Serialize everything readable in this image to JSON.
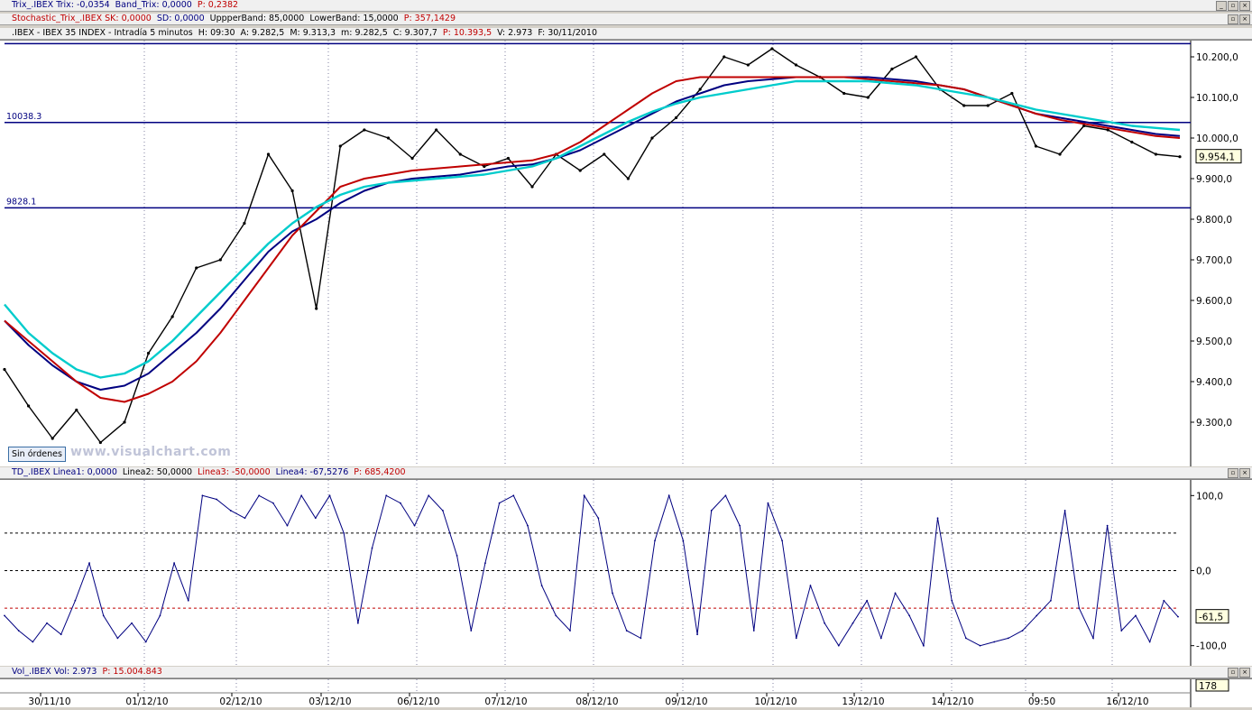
{
  "headers": {
    "trix": [
      "Trix_.IBEX Trix: -0,0354",
      "Band_Trix: 0,0000",
      "P: 0,2382"
    ],
    "stoch": [
      "Stochastic_Trix_.IBEX SK: 0,0000",
      "SD: 0,0000",
      "UppperBand: 85,0000",
      "LowerBand: 15,0000",
      "P: 357,1429"
    ],
    "ibex": [
      ".IBEX - IBEX 35 INDEX - Intradía 5 minutos",
      "H: 09:30",
      "A: 9.282,5",
      "M: 9.313,3",
      "m: 9.282,5",
      "C: 9.307,7",
      "P: 10.393,5",
      "V: 2.973",
      "F: 30/11/2010"
    ],
    "td": [
      "TD_.IBEX Linea1: 0,0000",
      "Linea2: 50,0000",
      "Linea3: -50,0000",
      "Linea4: -67,5276",
      "P: 685,4200"
    ],
    "vol": [
      "Vol_.IBEX Vol: 2.973",
      "P: 15.004.843"
    ]
  },
  "window_buttons": {
    "minimize": "_",
    "restore": "▫",
    "close": "×"
  },
  "sin_ordenes": "Sin órdenes",
  "watermark": "www.visualchart.com",
  "colors": {
    "price": "#000000",
    "mm1": "#000080",
    "mm2": "#c00000",
    "mm3": "#00cccc",
    "osc": "#000080",
    "hline": "#000080"
  },
  "chart_data": [
    {
      "type": "line",
      "title": ".IBEX - IBEX 35 INDEX - Intradía 5 minutos",
      "y_ticks": [
        "10.200,0",
        "10.100,0",
        "10.000,0",
        "9.900,0",
        "9.800,0",
        "9.700,0",
        "9.600,0",
        "9.500,0",
        "9.400,0",
        "9.300,0"
      ],
      "ylim": [
        9200,
        10240
      ],
      "x_ticks": [
        "30/11/10",
        "01/12/10",
        "02/12/10",
        "03/12/10",
        "06/12/10",
        "07/12/10",
        "08/12/10",
        "09/12/10",
        "10/12/10",
        "13/12/10",
        "14/12/10",
        "09:50",
        "16/12/10"
      ],
      "horizontal_lines": [
        {
          "label": "10232.4",
          "value": 10232.4
        },
        {
          "label": "10038.3",
          "value": 10038.3
        },
        {
          "label": "9828.1",
          "value": 9828.1
        }
      ],
      "last_value_tag": "9.954,1",
      "series": [
        {
          "values": [
            9430,
            9340,
            9260,
            9330,
            9250,
            9300,
            9470,
            9560,
            9680,
            9700,
            9790,
            9960,
            9870,
            9580,
            9980,
            10020,
            10000,
            9950,
            10020,
            9960,
            9930,
            9950,
            9880,
            9960,
            9920,
            9960,
            9900,
            10000,
            10050,
            10120,
            10200,
            10180,
            10220,
            10180,
            10150,
            10110,
            10100,
            10170,
            10200,
            10120,
            10080,
            10080,
            10110,
            9980,
            9960,
            10030,
            10020,
            9990,
            9960,
            9954
          ]
        },
        {
          "values": [
            9550,
            9490,
            9440,
            9400,
            9380,
            9390,
            9420,
            9470,
            9520,
            9580,
            9650,
            9720,
            9770,
            9800,
            9840,
            9870,
            9890,
            9900,
            9905,
            9910,
            9920,
            9930,
            9935,
            9950,
            9970,
            10000,
            10030,
            10060,
            10090,
            10110,
            10130,
            10140,
            10145,
            10150,
            10150,
            10150,
            10150,
            10145,
            10140,
            10130,
            10120,
            10100,
            10080,
            10060,
            10050,
            10040,
            10030,
            10020,
            10010,
            10005
          ]
        },
        {
          "values": [
            9550,
            9500,
            9450,
            9400,
            9360,
            9350,
            9370,
            9400,
            9450,
            9520,
            9600,
            9680,
            9760,
            9820,
            9880,
            9900,
            9910,
            9920,
            9925,
            9930,
            9935,
            9940,
            9945,
            9960,
            9990,
            10030,
            10070,
            10110,
            10140,
            10150,
            10150,
            10150,
            10150,
            10150,
            10150,
            10150,
            10145,
            10140,
            10135,
            10130,
            10120,
            10100,
            10080,
            10060,
            10045,
            10035,
            10025,
            10015,
            10005,
            10000
          ]
        },
        {
          "values": [
            9590,
            9520,
            9470,
            9430,
            9410,
            9420,
            9450,
            9500,
            9560,
            9620,
            9680,
            9740,
            9790,
            9830,
            9860,
            9880,
            9890,
            9895,
            9900,
            9905,
            9910,
            9920,
            9930,
            9950,
            9980,
            10010,
            10040,
            10065,
            10085,
            10100,
            10110,
            10120,
            10130,
            10140,
            10140,
            10140,
            10140,
            10135,
            10130,
            10120,
            10110,
            10100,
            10085,
            10070,
            10060,
            10050,
            10040,
            10030,
            10025,
            10020
          ]
        }
      ]
    },
    {
      "type": "line",
      "title": "TD_.IBEX",
      "y_ticks": [
        "100,0",
        "0,0",
        "-100,0"
      ],
      "ylim": [
        -110,
        110
      ],
      "reference_lines": [
        50,
        0,
        -50
      ],
      "last_value_tag": "-61,5",
      "series": [
        {
          "values": [
            -60,
            -80,
            -95,
            -70,
            -85,
            -40,
            10,
            -60,
            -90,
            -70,
            -95,
            -60,
            10,
            -40,
            100,
            95,
            80,
            70,
            100,
            90,
            60,
            100,
            70,
            100,
            50,
            -70,
            30,
            100,
            90,
            60,
            100,
            80,
            20,
            -80,
            10,
            90,
            100,
            60,
            -20,
            -60,
            -80,
            100,
            70,
            -30,
            -80,
            -90,
            40,
            100,
            40,
            -85,
            80,
            100,
            60,
            -80,
            90,
            40,
            -90,
            -20,
            -70,
            -100,
            -70,
            -40,
            -90,
            -30,
            -60,
            -100,
            70,
            -40,
            -90,
            -100,
            -95,
            -90,
            -80,
            -60,
            -40,
            80,
            -50,
            -90,
            60,
            -80,
            -60,
            -95,
            -40,
            -61.5
          ]
        }
      ]
    },
    {
      "type": "bar",
      "title": "Vol_.IBEX",
      "last_value_tag": "178"
    }
  ]
}
